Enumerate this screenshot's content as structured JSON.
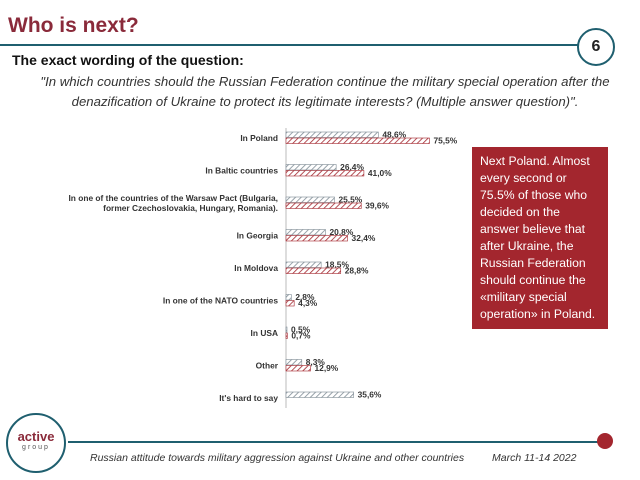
{
  "header": {
    "title": "Who is next?",
    "page_number": "6"
  },
  "question": {
    "label": "The exact wording of the question:",
    "text": "\"In which countries should the Russian Federation continue the military special operation after the denazification of Ukraine to protect its legitimate interests? (Multiple answer question)\"."
  },
  "callout": {
    "text": "Next Poland. Almost every second or 75.5% of those who decided on the answer believe that after Ukraine, the Russian Federation should continue the «military special operation» in Poland."
  },
  "footer": {
    "logo_main": "active",
    "logo_sub": "group",
    "text": "Russian attitude towards military aggression against Ukraine and other countries",
    "date": "March 11-14 2022"
  },
  "colors": {
    "accent": "#8a2a3a",
    "callout_bg": "#a3262e",
    "line": "#1f5f6f",
    "series1": "#7f8c95",
    "series2": "#a3262e"
  },
  "chart_data": {
    "type": "bar",
    "orientation": "horizontal",
    "categories": [
      [
        "In Poland"
      ],
      [
        "In Baltic countries"
      ],
      [
        "In one of the countries of the Warsaw Pact (Bulgaria,",
        "former Czechoslovakia, Hungary, Romania)."
      ],
      [
        "In Georgia"
      ],
      [
        "In Moldova"
      ],
      [
        "In one of the NATO countries"
      ],
      [
        "In USA"
      ],
      [
        "Other"
      ],
      [
        "It's hard to say"
      ]
    ],
    "series": [
      {
        "values": [
          48.6,
          26.4,
          25.5,
          20.8,
          18.5,
          2.8,
          0.5,
          8.3,
          35.6
        ],
        "labels": [
          "48,6%",
          "26,4%",
          "25,5%",
          "20,8%",
          "18,5%",
          "2,8%",
          "0,5%",
          "8,3%",
          "35,6%"
        ]
      },
      {
        "values": [
          75.5,
          41.0,
          39.6,
          32.4,
          28.8,
          4.3,
          0.7,
          12.9,
          null
        ],
        "labels": [
          "75,5%",
          "41,0%",
          "39,6%",
          "32,4%",
          "28,8%",
          "4,3%",
          "0,7%",
          "12,9%",
          null
        ]
      }
    ],
    "xlim": [
      0,
      100
    ],
    "grid": false
  }
}
